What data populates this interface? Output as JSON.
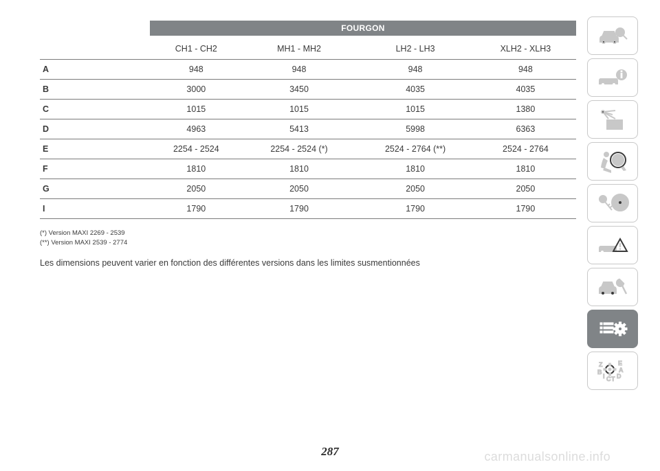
{
  "table": {
    "header_bar": "FOURGON",
    "header_bar_bg": "#808487",
    "header_bar_fg": "#ffffff",
    "row_border": "#7a7a7a",
    "columns": [
      "",
      "CH1 - CH2",
      "MH1 - MH2",
      "LH2 - LH3",
      "XLH2 - XLH3"
    ],
    "rows": [
      {
        "label": "A",
        "cells": [
          "948",
          "948",
          "948",
          "948"
        ]
      },
      {
        "label": "B",
        "cells": [
          "3000",
          "3450",
          "4035",
          "4035"
        ]
      },
      {
        "label": "C",
        "cells": [
          "1015",
          "1015",
          "1015",
          "1380"
        ]
      },
      {
        "label": "D",
        "cells": [
          "4963",
          "5413",
          "5998",
          "6363"
        ]
      },
      {
        "label": "E",
        "cells": [
          "2254 - 2524",
          "2254 - 2524 (*)",
          "2524 - 2764 (**)",
          "2524 - 2764"
        ]
      },
      {
        "label": "F",
        "cells": [
          "1810",
          "1810",
          "1810",
          "1810"
        ]
      },
      {
        "label": "G",
        "cells": [
          "2050",
          "2050",
          "2050",
          "2050"
        ]
      },
      {
        "label": "I",
        "cells": [
          "1790",
          "1790",
          "1790",
          "1790"
        ]
      }
    ]
  },
  "footnotes": {
    "n1": "(*) Version MAXI 2269 - 2539",
    "n2": "(**) Version MAXI 2539 - 2774"
  },
  "body_note": "Les dimensions peuvent varier en fonction des différentes versions dans les limites susmentionnées",
  "page_number": "287",
  "watermark": "carmanualsonline.info",
  "sidebar": {
    "border_color": "#c8c8c8",
    "icon_color": "#c8c8c8",
    "active_bg": "#808487",
    "active_fg": "#ffffff",
    "items": [
      {
        "name": "car-search-icon",
        "active": false
      },
      {
        "name": "car-info-icon",
        "active": false
      },
      {
        "name": "indicator-mail-icon",
        "active": false
      },
      {
        "name": "airbag-icon",
        "active": false
      },
      {
        "name": "key-steering-icon",
        "active": false
      },
      {
        "name": "car-warning-icon",
        "active": false
      },
      {
        "name": "car-wrench-icon",
        "active": false
      },
      {
        "name": "list-gear-icon",
        "active": true
      },
      {
        "name": "abc-gear-icon",
        "active": false
      }
    ]
  }
}
